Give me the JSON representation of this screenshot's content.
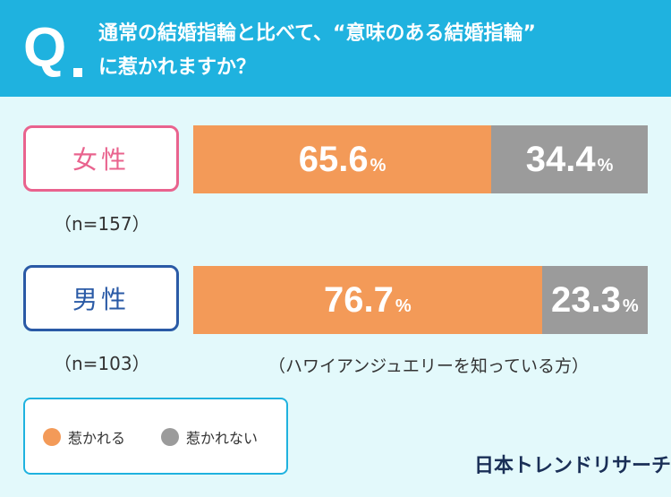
{
  "header": {
    "q_mark": "Q",
    "question_line1": "通常の結婚指輪と比べて、“意味のある結婚指輪”",
    "question_line2": "に惹かれますか？"
  },
  "colors": {
    "header": "#1fb2df",
    "background": "#e3f9fb",
    "attracted": "#f39a58",
    "not_attracted": "#9b9b9b",
    "female": "#e9638e",
    "male": "#2a5aa6"
  },
  "groups": [
    {
      "label": "女性",
      "n_label": "（n=157）"
    },
    {
      "label": "男性",
      "n_label": "（n=103）"
    }
  ],
  "footnote": "（ハワイアンジュエリーを知っている方）",
  "legend": [
    {
      "label": "惹かれる"
    },
    {
      "label": "惹かれない"
    }
  ],
  "brand": "日本トレンドリサーチ",
  "chart_data": {
    "type": "bar",
    "orientation": "horizontal",
    "stacked": true,
    "normalized": true,
    "categories": [
      "女性",
      "男性"
    ],
    "series": [
      {
        "name": "惹かれる",
        "values": [
          65.6,
          76.7
        ]
      },
      {
        "name": "惹かれない",
        "values": [
          34.4,
          23.3
        ]
      }
    ],
    "unit": "%",
    "xlim": [
      0,
      100
    ],
    "legend_position": "bottom-left"
  }
}
